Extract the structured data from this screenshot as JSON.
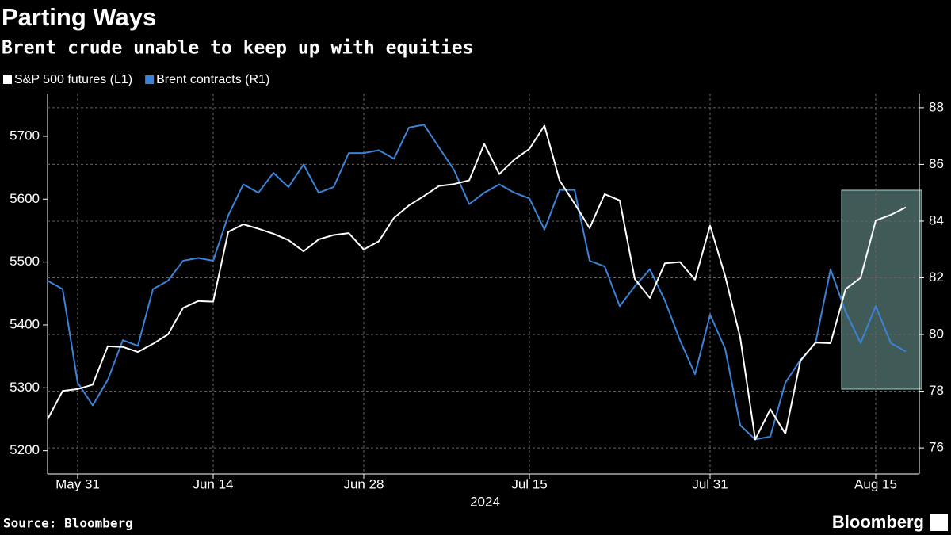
{
  "chart_data": {
    "type": "line",
    "title": "Parting Ways",
    "subtitle": "Brent crude unable to keep up with equities",
    "x_label": "2024",
    "source": "Source: Bloomberg",
    "logo": "Bloomberg",
    "categories": [
      null,
      null,
      "May 31",
      null,
      null,
      null,
      null,
      null,
      null,
      null,
      null,
      "Jun 14",
      null,
      null,
      null,
      null,
      null,
      null,
      null,
      null,
      null,
      "Jun 28",
      null,
      null,
      null,
      null,
      null,
      null,
      null,
      null,
      null,
      null,
      "Jul 15",
      null,
      null,
      null,
      null,
      null,
      null,
      null,
      null,
      null,
      null,
      null,
      "Jul 31",
      null,
      null,
      null,
      null,
      null,
      null,
      null,
      null,
      null,
      null,
      "Aug 15",
      null,
      null
    ],
    "series": [
      {
        "name": "S&P 500 futures (L1)",
        "color": "#ffffff",
        "axis": "y",
        "values": [
          5250,
          5295,
          5298,
          5305,
          5366,
          5365,
          5357,
          5370,
          5385,
          5427,
          5438,
          5437,
          5548,
          5560,
          5553,
          5545,
          5535,
          5517,
          5536,
          5543,
          5546,
          5520,
          5533,
          5570,
          5590,
          5605,
          5621,
          5624,
          5630,
          5688,
          5640,
          5663,
          5680,
          5717,
          5630,
          5593,
          5554,
          5608,
          5598,
          5473,
          5443,
          5498,
          5500,
          5472,
          5558,
          5478,
          5380,
          5218,
          5266,
          5227,
          5343,
          5372,
          5371,
          5457,
          5475,
          5566,
          5575,
          5587
        ]
      },
      {
        "name": "Brent contracts (R1)",
        "color": "#3a83d8",
        "axis": "y2",
        "values": [
          81.9,
          81.6,
          78.3,
          77.5,
          78.4,
          79.8,
          79.6,
          81.6,
          81.9,
          82.6,
          82.7,
          82.6,
          84.2,
          85.3,
          85.0,
          85.7,
          85.2,
          86.0,
          85.0,
          85.2,
          86.4,
          86.4,
          86.5,
          86.2,
          87.3,
          87.4,
          86.6,
          85.8,
          84.6,
          85.0,
          85.3,
          85.0,
          84.8,
          83.7,
          85.1,
          85.1,
          82.6,
          82.4,
          81.0,
          81.7,
          82.3,
          81.2,
          79.8,
          78.6,
          80.7,
          79.5,
          76.8,
          76.3,
          76.4,
          78.3,
          79.1,
          79.7,
          82.3,
          80.8,
          79.7,
          81.0,
          79.7,
          79.4
        ]
      }
    ],
    "ylim": [
      5163,
      5768
    ],
    "yticks": [
      5200,
      5300,
      5400,
      5500,
      5600,
      5700
    ],
    "y2lim": [
      75.08,
      88.5
    ],
    "y2ticks": [
      76,
      78,
      80,
      82,
      84,
      86,
      88
    ],
    "grid": true,
    "legend": "top-left"
  }
}
